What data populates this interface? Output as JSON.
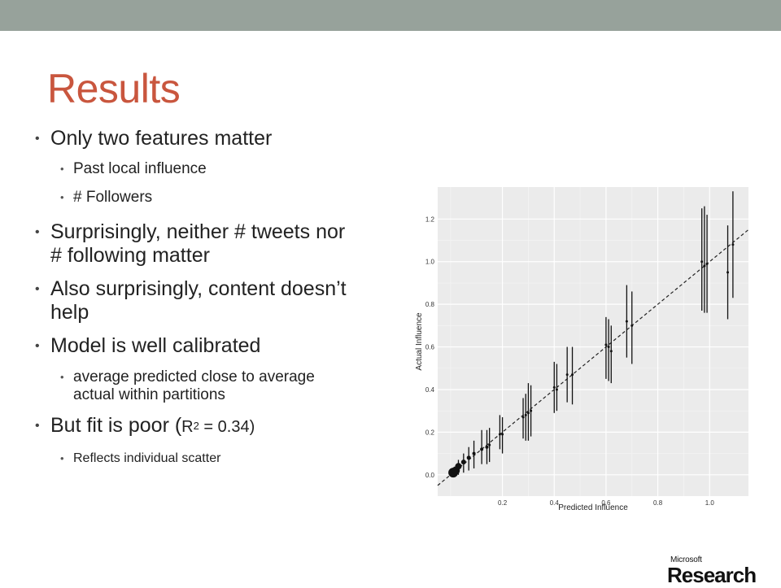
{
  "slide": {
    "title": "Results",
    "bullets": [
      {
        "text": "Only two features matter",
        "sub": [
          "Past local influence",
          "# Followers"
        ]
      },
      {
        "text": "Surprisingly, neither # tweets nor # following matter",
        "sub": []
      },
      {
        "text": "Also surprisingly, content doesn’t help",
        "sub": []
      },
      {
        "text": "Model is well calibrated",
        "sub": [
          "average predicted close to average actual within partitions"
        ]
      },
      {
        "text_prefix": "But fit is poor (",
        "r2": "R",
        "r2_sup": "2",
        "r2_rest": " = 0.34)",
        "sub": [
          "Reflects individual scatter"
        ]
      }
    ]
  },
  "logo": {
    "line1": "Microsoft",
    "line2": "Research"
  },
  "colors": {
    "top_bar": "#97a29b",
    "title": "#c9563e"
  },
  "chart_data": {
    "type": "scatter",
    "xlabel": "Predicted Influence",
    "ylabel": "Actual Influence",
    "xlim": [
      -0.05,
      1.15
    ],
    "ylim": [
      -0.1,
      1.35
    ],
    "xticks": [
      "0.2",
      "0.4",
      "0.6",
      "0.8",
      "1.0"
    ],
    "yticks": [
      "0.0",
      "0.2",
      "0.4",
      "0.6",
      "0.8",
      "1.0",
      "1.2"
    ],
    "xtick_values": [
      0.2,
      0.4,
      0.6,
      0.8,
      1.0
    ],
    "ytick_values": [
      0.0,
      0.2,
      0.4,
      0.6,
      0.8,
      1.0,
      1.2
    ],
    "reference_line": "y = x (dashed)",
    "grid": true,
    "points": [
      {
        "x": 0.01,
        "y": 0.01,
        "lo": 0.0,
        "hi": 0.02,
        "size": 6
      },
      {
        "x": 0.02,
        "y": 0.02,
        "lo": 0.0,
        "hi": 0.04,
        "size": 5
      },
      {
        "x": 0.03,
        "y": 0.04,
        "lo": 0.0,
        "hi": 0.07,
        "size": 4
      },
      {
        "x": 0.05,
        "y": 0.06,
        "lo": 0.01,
        "hi": 0.1,
        "size": 3
      },
      {
        "x": 0.07,
        "y": 0.08,
        "lo": 0.02,
        "hi": 0.13,
        "size": 2.5
      },
      {
        "x": 0.09,
        "y": 0.1,
        "lo": 0.03,
        "hi": 0.16,
        "size": 2
      },
      {
        "x": 0.12,
        "y": 0.12,
        "lo": 0.05,
        "hi": 0.21,
        "size": 2
      },
      {
        "x": 0.14,
        "y": 0.13,
        "lo": 0.05,
        "hi": 0.21,
        "size": 2
      },
      {
        "x": 0.15,
        "y": 0.14,
        "lo": 0.06,
        "hi": 0.22,
        "size": 1.5
      },
      {
        "x": 0.19,
        "y": 0.19,
        "lo": 0.12,
        "hi": 0.28,
        "size": 1.5
      },
      {
        "x": 0.2,
        "y": 0.19,
        "lo": 0.1,
        "hi": 0.27,
        "size": 1.5
      },
      {
        "x": 0.28,
        "y": 0.27,
        "lo": 0.17,
        "hi": 0.36,
        "size": 1.5
      },
      {
        "x": 0.29,
        "y": 0.28,
        "lo": 0.16,
        "hi": 0.38,
        "size": 1.5
      },
      {
        "x": 0.3,
        "y": 0.29,
        "lo": 0.16,
        "hi": 0.43,
        "size": 1.5
      },
      {
        "x": 0.31,
        "y": 0.3,
        "lo": 0.18,
        "hi": 0.42,
        "size": 1.5
      },
      {
        "x": 0.4,
        "y": 0.41,
        "lo": 0.29,
        "hi": 0.53,
        "size": 1.5
      },
      {
        "x": 0.41,
        "y": 0.4,
        "lo": 0.3,
        "hi": 0.52,
        "size": 1.5
      },
      {
        "x": 0.45,
        "y": 0.47,
        "lo": 0.34,
        "hi": 0.6,
        "size": 1.5
      },
      {
        "x": 0.47,
        "y": 0.47,
        "lo": 0.33,
        "hi": 0.6,
        "size": 1.5
      },
      {
        "x": 0.6,
        "y": 0.61,
        "lo": 0.45,
        "hi": 0.74,
        "size": 1.5
      },
      {
        "x": 0.61,
        "y": 0.6,
        "lo": 0.44,
        "hi": 0.73,
        "size": 1.5
      },
      {
        "x": 0.62,
        "y": 0.58,
        "lo": 0.43,
        "hi": 0.7,
        "size": 1.5
      },
      {
        "x": 0.68,
        "y": 0.72,
        "lo": 0.55,
        "hi": 0.89,
        "size": 1.5
      },
      {
        "x": 0.7,
        "y": 0.7,
        "lo": 0.52,
        "hi": 0.86,
        "size": 1.5
      },
      {
        "x": 0.97,
        "y": 1.0,
        "lo": 0.77,
        "hi": 1.25,
        "size": 1.5
      },
      {
        "x": 0.98,
        "y": 0.98,
        "lo": 0.76,
        "hi": 1.26,
        "size": 1.5
      },
      {
        "x": 0.99,
        "y": 0.99,
        "lo": 0.76,
        "hi": 1.22,
        "size": 1.5
      },
      {
        "x": 1.07,
        "y": 0.95,
        "lo": 0.73,
        "hi": 1.17,
        "size": 1.5
      },
      {
        "x": 1.09,
        "y": 1.08,
        "lo": 0.83,
        "hi": 1.33,
        "size": 1.5
      }
    ]
  }
}
